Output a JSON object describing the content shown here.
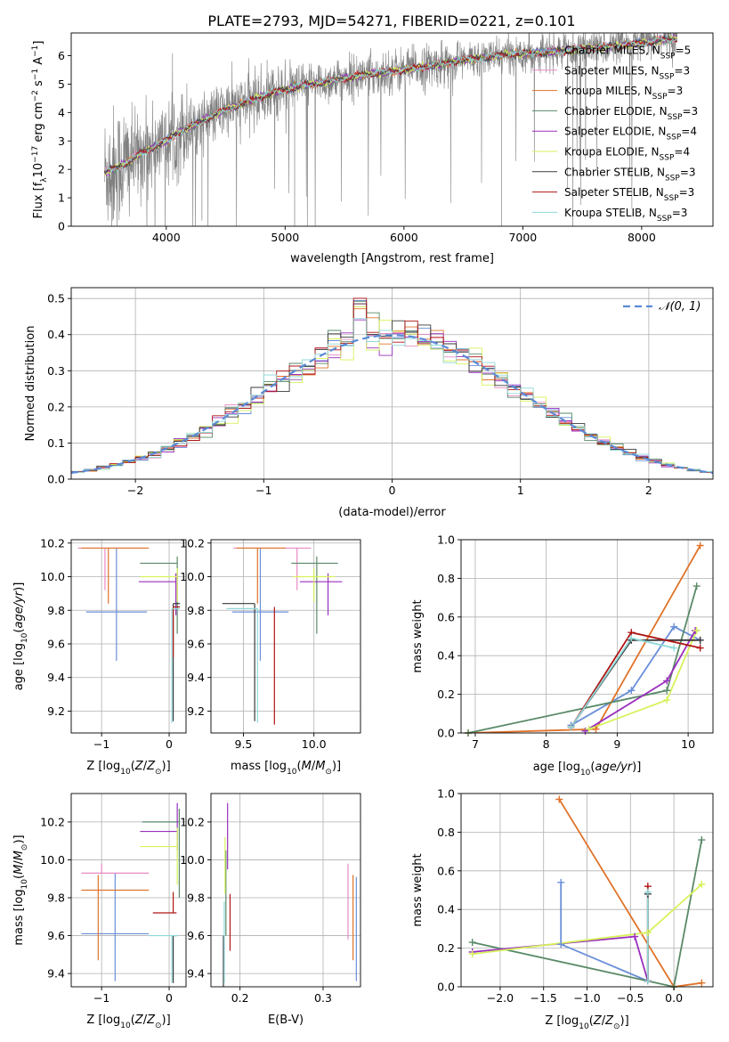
{
  "figure_title": "PLATE=2793, MJD=54271, FIBERID=0221, z=0.101",
  "colors": {
    "chabrier_miles": "#6a8fd8",
    "salpeter_miles": "#e78ac3",
    "kroupa_miles": "#e0732a",
    "chabrier_elodie": "#5a8a68",
    "salpeter_elodie": "#9a2fbe",
    "kroupa_elodie": "#d6f25a",
    "chabrier_stelib": "#3a3a3a",
    "salpeter_stelib": "#b01515",
    "kroupa_stelib": "#8fd8d8",
    "data": "#808080",
    "normal": "#5b8ad6",
    "grid": "#b0b0b0"
  },
  "chart_data": [
    {
      "type": "line",
      "id": "spectrum",
      "xlabel": "wavelength [Angstrom, rest frame]",
      "ylabel": "Flux [f",
      "xlim": [
        3200,
        8600
      ],
      "ylim": [
        0,
        6.8
      ],
      "xticks": [
        "4000",
        "5000",
        "6000",
        "7000",
        "8000"
      ],
      "yticks": [
        "0",
        "1",
        "2",
        "3",
        "4",
        "5",
        "6"
      ],
      "grid": false,
      "legend_position": "upper-right",
      "legend": [
        {
          "label": "Chabrier MILES, N",
          "n": 5
        },
        {
          "label": "Salpeter MILES, N",
          "n": 3
        },
        {
          "label": "Kroupa MILES, N",
          "n": 3
        },
        {
          "label": "Chabrier ELODIE, N",
          "n": 3
        },
        {
          "label": "Salpeter ELODIE, N",
          "n": 4
        },
        {
          "label": "Kroupa ELODIE, N",
          "n": 4
        },
        {
          "label": "Chabrier STELIB, N",
          "n": 3
        },
        {
          "label": "Salpeter STELIB, N",
          "n": 3
        },
        {
          "label": "Kroupa STELIB, N",
          "n": 3
        }
      ],
      "model_continuum": {
        "x": [
          3480,
          3600,
          3700,
          3800,
          3900,
          4000,
          4100,
          4300,
          4500,
          4700,
          4900,
          5100,
          5300,
          5500,
          5700,
          5900,
          6100,
          6300,
          6500,
          6700,
          6900,
          7100,
          7300,
          7500,
          7700,
          7900,
          8100,
          8300
        ],
        "y": [
          1.9,
          2.1,
          2.3,
          2.6,
          2.8,
          3.0,
          3.3,
          3.7,
          4.1,
          4.4,
          4.7,
          4.9,
          5.05,
          5.2,
          5.35,
          5.45,
          5.55,
          5.7,
          5.85,
          5.95,
          6.05,
          6.1,
          6.15,
          6.25,
          6.3,
          6.4,
          6.5,
          6.6
        ]
      }
    },
    {
      "type": "histogram",
      "id": "residuals",
      "xlabel": "(data-model)/error",
      "ylabel": "Normed distribution",
      "xlim": [
        -2.5,
        2.5
      ],
      "ylim": [
        0,
        0.53
      ],
      "xticks": [
        "−2",
        "−1",
        "0",
        "1",
        "2"
      ],
      "yticks": [
        "0.0",
        "0.1",
        "0.2",
        "0.3",
        "0.4",
        "0.5"
      ],
      "grid": true,
      "legend_label": "𝒩(0, 1)",
      "bin_width": 0.1,
      "reference_curve": "normal(0,1)"
    },
    {
      "type": "errorbar",
      "id": "age_vs_Z",
      "xlabel": "Z [log",
      "ylabel": "age  [log",
      "xlim": [
        -1.45,
        0.25
      ],
      "ylim": [
        9.07,
        10.22
      ],
      "xticks": [
        "−1",
        "0"
      ],
      "yticks": [
        "9.2",
        "9.4",
        "9.6",
        "9.8",
        "10.0",
        "10.2"
      ],
      "grid": true,
      "points": [
        {
          "s": "chabrier_miles",
          "x": -0.78,
          "xerr": [
            0.45,
            0.45
          ],
          "y": 9.79,
          "yerr": [
            0.29,
            0.38
          ]
        },
        {
          "s": "salpeter_miles",
          "x": -0.95,
          "xerr": [
            0.4,
            0.6
          ],
          "y": 10.17,
          "yerr": [
            0.25,
            0.0
          ]
        },
        {
          "s": "kroupa_miles",
          "x": -0.9,
          "xerr": [
            0.4,
            0.6
          ],
          "y": 10.17,
          "yerr": [
            0.33,
            0.0
          ]
        },
        {
          "s": "chabrier_elodie",
          "x": 0.12,
          "xerr": [
            0.55,
            0.0
          ],
          "y": 10.08,
          "yerr": [
            0.42,
            0.04
          ]
        },
        {
          "s": "salpeter_elodie",
          "x": 0.1,
          "xerr": [
            0.55,
            0.0
          ],
          "y": 9.97,
          "yerr": [
            0.2,
            0.05
          ]
        },
        {
          "s": "kroupa_elodie",
          "x": 0.12,
          "xerr": [
            0.55,
            0.0
          ],
          "y": 10.0,
          "yerr": [
            0.15,
            0.05
          ]
        },
        {
          "s": "chabrier_stelib",
          "x": 0.06,
          "xerr": [
            0.0,
            0.1
          ],
          "y": 9.84,
          "yerr": [
            0.7,
            0.0
          ]
        },
        {
          "s": "salpeter_stelib",
          "x": 0.06,
          "xerr": [
            0.0,
            0.1
          ],
          "y": 9.82,
          "yerr": [
            0.3,
            0.0
          ]
        },
        {
          "s": "kroupa_stelib",
          "x": 0.04,
          "xerr": [
            0.0,
            0.12
          ],
          "y": 9.81,
          "yerr": [
            0.68,
            0.0
          ]
        }
      ]
    },
    {
      "type": "errorbar",
      "id": "age_vs_mass",
      "xlabel": "mass [log",
      "ylabel": "",
      "xlim": [
        9.27,
        10.33
      ],
      "ylim": [
        9.07,
        10.22
      ],
      "xticks": [
        "9.5",
        "10.0"
      ],
      "yticks": [
        "9.2",
        "9.4",
        "9.6",
        "9.8",
        "10.0",
        "10.2"
      ],
      "grid": true,
      "points": [
        {
          "s": "chabrier_miles",
          "x": 9.62,
          "xerr": [
            0.2,
            0.2
          ],
          "y": 9.79,
          "yerr": [
            0.29,
            0.38
          ]
        },
        {
          "s": "salpeter_miles",
          "x": 9.88,
          "xerr": [
            0.45,
            0.1
          ],
          "y": 10.17,
          "yerr": [
            0.25,
            0.0
          ]
        },
        {
          "s": "kroupa_miles",
          "x": 9.6,
          "xerr": [
            0.15,
            0.2
          ],
          "y": 10.17,
          "yerr": [
            0.33,
            0.0
          ]
        },
        {
          "s": "chabrier_elodie",
          "x": 10.02,
          "xerr": [
            0.18,
            0.15
          ],
          "y": 10.08,
          "yerr": [
            0.42,
            0.04
          ]
        },
        {
          "s": "salpeter_elodie",
          "x": 10.1,
          "xerr": [
            0.2,
            0.1
          ],
          "y": 9.97,
          "yerr": [
            0.2,
            0.05
          ]
        },
        {
          "s": "kroupa_elodie",
          "x": 10.0,
          "xerr": [
            0.15,
            0.15
          ],
          "y": 10.0,
          "yerr": [
            0.15,
            0.05
          ]
        },
        {
          "s": "chabrier_stelib",
          "x": 9.58,
          "xerr": [
            0.23,
            0.0
          ],
          "y": 9.84,
          "yerr": [
            0.7,
            0.0
          ]
        },
        {
          "s": "salpeter_stelib",
          "x": 9.72,
          "xerr": [
            0.0,
            0.0
          ],
          "y": 9.82,
          "yerr": [
            0.7,
            0.0
          ]
        },
        {
          "s": "kroupa_stelib",
          "x": 9.6,
          "xerr": [
            0.22,
            0.0
          ],
          "y": 9.81,
          "yerr": [
            0.68,
            0.0
          ]
        }
      ]
    },
    {
      "type": "line",
      "id": "massweight_vs_age",
      "xlabel": "age  [log",
      "ylabel": "mass weight",
      "xlim": [
        6.8,
        10.35
      ],
      "ylim": [
        0,
        1.0
      ],
      "xticks": [
        "7",
        "8",
        "9",
        "10"
      ],
      "yticks": [
        "0.0",
        "0.2",
        "0.4",
        "0.6",
        "0.8",
        "1.0"
      ],
      "grid": true,
      "series": [
        {
          "s": "chabrier_miles",
          "x": [
            8.35,
            9.2,
            9.8,
            10.17
          ],
          "y": [
            0.04,
            0.22,
            0.55,
            0.48
          ]
        },
        {
          "s": "kroupa_miles",
          "x": [
            6.9,
            8.7,
            10.17
          ],
          "y": [
            0.0,
            0.02,
            0.97
          ]
        },
        {
          "s": "chabrier_elodie",
          "x": [
            6.9,
            9.7,
            10.12
          ],
          "y": [
            0.0,
            0.22,
            0.76
          ]
        },
        {
          "s": "salpeter_elodie",
          "x": [
            8.55,
            9.7,
            10.1
          ],
          "y": [
            0.01,
            0.27,
            0.53
          ]
        },
        {
          "s": "kroupa_elodie",
          "x": [
            8.6,
            9.7,
            10.12
          ],
          "y": [
            0.02,
            0.17,
            0.53
          ]
        },
        {
          "s": "chabrier_stelib",
          "x": [
            8.35,
            9.2,
            10.17
          ],
          "y": [
            0.03,
            0.48,
            0.48
          ]
        },
        {
          "s": "salpeter_stelib",
          "x": [
            8.35,
            9.2,
            10.17
          ],
          "y": [
            0.03,
            0.52,
            0.44
          ]
        },
        {
          "s": "kroupa_stelib",
          "x": [
            8.35,
            9.2,
            9.8
          ],
          "y": [
            0.03,
            0.49,
            0.44
          ]
        }
      ]
    },
    {
      "type": "errorbar",
      "id": "mass_vs_Z",
      "xlabel": "Z [log",
      "ylabel": "mass [log",
      "xlim": [
        -1.45,
        0.25
      ],
      "ylim": [
        9.33,
        10.35
      ],
      "xticks": [
        "−1",
        "0"
      ],
      "yticks": [
        "9.4",
        "9.6",
        "9.8",
        "10.0",
        "10.2"
      ],
      "grid": true,
      "points": [
        {
          "s": "chabrier_miles",
          "x": -0.8,
          "xerr": [
            0.5,
            0.5
          ],
          "y": 9.61,
          "yerr": [
            0.25,
            0.32
          ]
        },
        {
          "s": "salpeter_miles",
          "x": -1.0,
          "xerr": [
            0.3,
            0.7
          ],
          "y": 9.93,
          "yerr": [
            0.0,
            0.05
          ]
        },
        {
          "s": "kroupa_miles",
          "x": -1.05,
          "xerr": [
            0.25,
            0.75
          ],
          "y": 9.84,
          "yerr": [
            0.37,
            0.08
          ]
        },
        {
          "s": "chabrier_elodie",
          "x": 0.15,
          "xerr": [
            0.55,
            0.0
          ],
          "y": 10.2,
          "yerr": [
            0.4,
            0.07
          ]
        },
        {
          "s": "salpeter_elodie",
          "x": 0.12,
          "xerr": [
            0.55,
            0.0
          ],
          "y": 10.15,
          "yerr": [
            0.1,
            0.15
          ]
        },
        {
          "s": "kroupa_elodie",
          "x": 0.12,
          "xerr": [
            0.55,
            0.0
          ],
          "y": 10.07,
          "yerr": [
            0.2,
            0.1
          ]
        },
        {
          "s": "chabrier_stelib",
          "x": 0.06,
          "xerr": [
            0.0,
            0.05
          ],
          "y": 9.6,
          "yerr": [
            0.25,
            0.0
          ]
        },
        {
          "s": "salpeter_stelib",
          "x": 0.06,
          "xerr": [
            0.3,
            0.05
          ],
          "y": 9.72,
          "yerr": [
            0.0,
            0.11
          ]
        },
        {
          "s": "kroupa_stelib",
          "x": 0.04,
          "xerr": [
            0.35,
            0.1
          ],
          "y": 9.6,
          "yerr": [
            0.25,
            0.0
          ]
        }
      ]
    },
    {
      "type": "errorbar",
      "id": "mass_vs_ebv",
      "xlabel": "E(B-V)",
      "ylabel": "",
      "xlim": [
        0.165,
        0.345
      ],
      "ylim": [
        9.33,
        10.35
      ],
      "xticks": [
        "0.2",
        "0.3"
      ],
      "yticks": [
        "9.4",
        "9.6",
        "9.8",
        "10.0",
        "10.2"
      ],
      "grid": true,
      "points": [
        {
          "s": "chabrier_miles",
          "x": 0.34,
          "yerr": [
            0.25,
            0.3
          ],
          "y": 9.61
        },
        {
          "s": "salpeter_miles",
          "x": 0.33,
          "yerr": [
            0.35,
            0.05
          ],
          "y": 9.93
        },
        {
          "s": "kroupa_miles",
          "x": 0.336,
          "yerr": [
            0.37,
            0.08
          ],
          "y": 9.84
        },
        {
          "s": "chabrier_elodie",
          "x": 0.183,
          "yerr": [
            0.35,
            0.1
          ],
          "y": 9.95
        },
        {
          "s": "salpeter_elodie",
          "x": 0.185,
          "yerr": [
            0.2,
            0.15
          ],
          "y": 10.15
        },
        {
          "s": "kroupa_elodie",
          "x": 0.182,
          "yerr": [
            0.25,
            0.05
          ],
          "y": 10.07
        },
        {
          "s": "chabrier_stelib",
          "x": 0.18,
          "yerr": [
            0.27,
            0.0
          ],
          "y": 9.6
        },
        {
          "s": "salpeter_stelib",
          "x": 0.188,
          "yerr": [
            0.2,
            0.1
          ],
          "y": 9.72
        },
        {
          "s": "kroupa_stelib",
          "x": 0.181,
          "yerr": [
            0.25,
            0.18
          ],
          "y": 9.6
        }
      ]
    },
    {
      "type": "line",
      "id": "massweight_vs_Z",
      "xlabel": "Z [log",
      "ylabel": "mass weight",
      "xlim": [
        -2.45,
        0.45
      ],
      "ylim": [
        0,
        1.0
      ],
      "xticks": [
        "−2.0",
        "−1.5",
        "−1.0",
        "−0.5",
        "0.0"
      ],
      "yticks": [
        "0.0",
        "0.2",
        "0.4",
        "0.6",
        "0.8",
        "1.0"
      ],
      "grid": true,
      "series": [
        {
          "s": "chabrier_miles",
          "x": [
            -1.3,
            -1.3,
            -0.3
          ],
          "y": [
            0.54,
            0.22,
            0.03
          ]
        },
        {
          "s": "kroupa_miles",
          "x": [
            -1.32,
            0.0,
            0.32
          ],
          "y": [
            0.97,
            0.0,
            0.02
          ]
        },
        {
          "s": "chabrier_elodie",
          "x": [
            -2.32,
            -0.3,
            0.0,
            0.32
          ],
          "y": [
            0.23,
            0.03,
            0.0,
            0.76
          ]
        },
        {
          "s": "salpeter_elodie",
          "x": [
            -2.32,
            -0.45,
            -0.3
          ],
          "y": [
            0.18,
            0.26,
            0.03
          ]
        },
        {
          "s": "kroupa_elodie",
          "x": [
            -2.32,
            -0.3,
            0.32
          ],
          "y": [
            0.17,
            0.28,
            0.53
          ]
        },
        {
          "s": "chabrier_stelib",
          "x": [
            -0.3,
            -0.3
          ],
          "y": [
            0.03,
            0.48
          ]
        },
        {
          "s": "salpeter_stelib",
          "x": [
            -0.3,
            -0.3
          ],
          "y": [
            0.03,
            0.52
          ]
        },
        {
          "s": "kroupa_stelib",
          "x": [
            -0.3,
            -0.3
          ],
          "y": [
            0.03,
            0.49
          ]
        }
      ]
    }
  ]
}
